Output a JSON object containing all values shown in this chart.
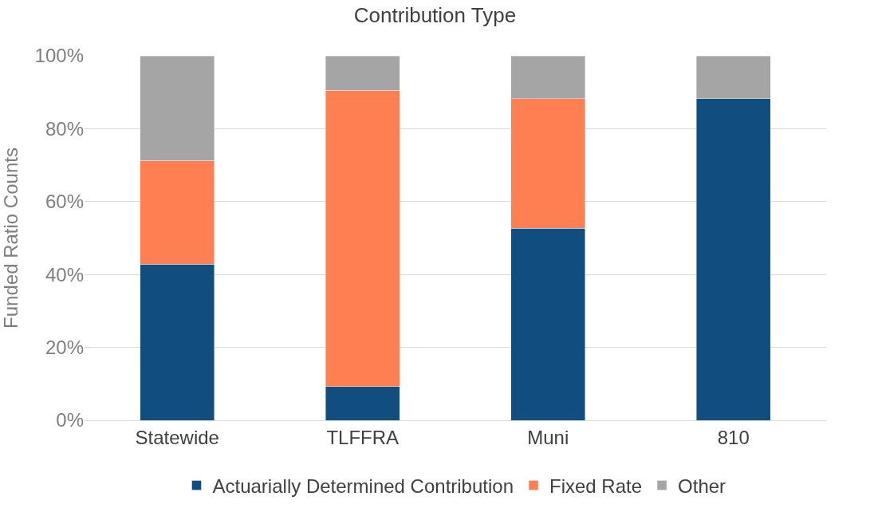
{
  "chart_data": {
    "type": "bar",
    "title": "Contribution Type",
    "ylabel": "Funded Ratio Counts",
    "stacked": true,
    "categories": [
      "Statewide",
      "TLFFRA",
      "Muni",
      "810"
    ],
    "series": [
      {
        "name": "Actuarially Determined Contribution",
        "color": "#114d7f",
        "values": [
          42.8,
          9.3,
          52.7,
          88.2
        ]
      },
      {
        "name": "Fixed Rate",
        "color": "#fe7f52",
        "values": [
          28.5,
          81.2,
          35.5,
          0
        ]
      },
      {
        "name": "Other",
        "color": "#a5a5a5",
        "values": [
          28.7,
          9.5,
          11.8,
          11.8
        ]
      }
    ],
    "ylim": [
      0,
      100
    ],
    "yticks": [
      {
        "value": 0,
        "label": "0%"
      },
      {
        "value": 20,
        "label": "20%"
      },
      {
        "value": 40,
        "label": "40%"
      },
      {
        "value": 60,
        "label": "60%"
      },
      {
        "value": 80,
        "label": "80%"
      },
      {
        "value": 100,
        "label": "100%"
      }
    ],
    "grid": "y",
    "legend": "bottom"
  }
}
